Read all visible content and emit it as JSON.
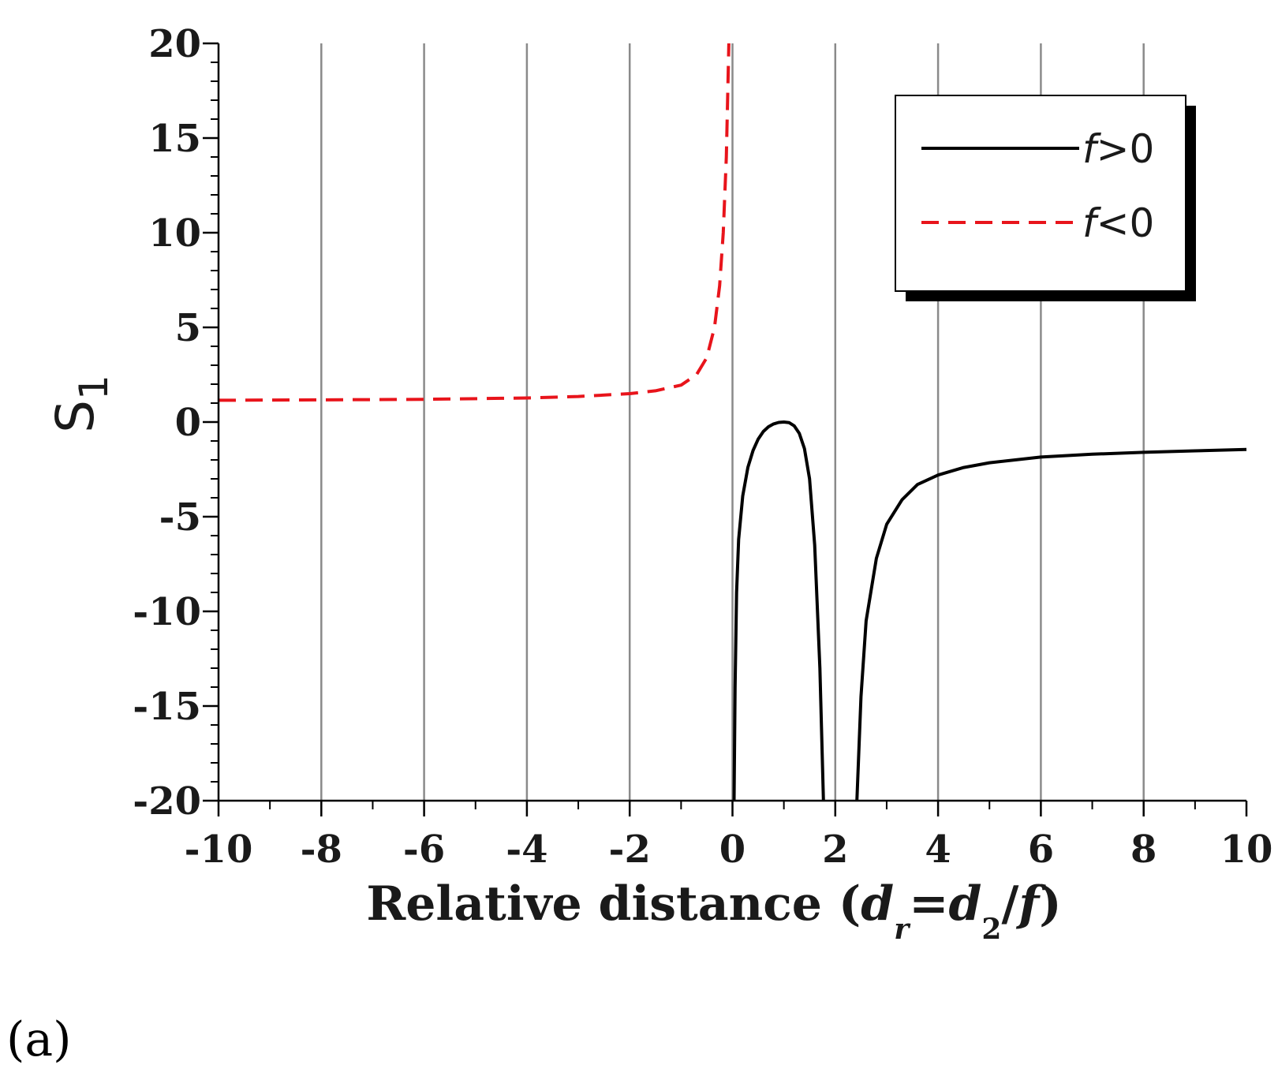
{
  "panel_label": "(a)",
  "chart_data": {
    "type": "line",
    "xlabel": "Relative distance (d_r = d_2 / f)",
    "xlabel_parts": {
      "prefix": "Relative distance (",
      "d1": "d",
      "sub1": "r",
      "eq": "=",
      "d2": "d",
      "sub2": "2",
      "slash": "/",
      "f": "f",
      "suffix": ")"
    },
    "ylabel": "S",
    "ylabel_sub": "1",
    "xlim": [
      -10,
      10
    ],
    "ylim": [
      -20,
      20
    ],
    "xticks": [
      -10,
      -8,
      -6,
      -4,
      -2,
      0,
      2,
      4,
      6,
      8,
      10
    ],
    "xtick_labels": [
      "-10",
      "-8",
      "-6",
      "-4",
      "-2",
      "0",
      "2",
      "4",
      "6",
      "8",
      "10"
    ],
    "yticks": [
      20,
      15,
      10,
      5,
      0,
      -5,
      -10,
      -15,
      -20
    ],
    "ytick_labels": [
      "20",
      "15",
      "10",
      "5",
      "0",
      "-5",
      "-10",
      "-15",
      "-20"
    ],
    "grid": "vertical",
    "legend_position": "top-right",
    "series": [
      {
        "name": "f>0",
        "legend_f": "f",
        "legend_rest": ">0",
        "color": "#000000",
        "style": "solid",
        "segments": [
          [
            [
              0.03,
              -20
            ],
            [
              0.05,
              -14
            ],
            [
              0.08,
              -9
            ],
            [
              0.12,
              -6.2
            ],
            [
              0.2,
              -3.9
            ],
            [
              0.3,
              -2.4
            ],
            [
              0.4,
              -1.5
            ],
            [
              0.5,
              -0.9
            ],
            [
              0.6,
              -0.5
            ],
            [
              0.7,
              -0.25
            ],
            [
              0.8,
              -0.1
            ],
            [
              0.9,
              -0.02
            ],
            [
              1.0,
              0
            ],
            [
              1.1,
              -0.03
            ],
            [
              1.2,
              -0.2
            ],
            [
              1.3,
              -0.6
            ],
            [
              1.4,
              -1.4
            ],
            [
              1.5,
              -3.0
            ],
            [
              1.6,
              -6.5
            ],
            [
              1.7,
              -13
            ],
            [
              1.77,
              -20
            ]
          ],
          [
            [
              2.42,
              -20
            ],
            [
              2.5,
              -14.5
            ],
            [
              2.6,
              -10.5
            ],
            [
              2.8,
              -7.2
            ],
            [
              3.0,
              -5.4
            ],
            [
              3.3,
              -4.1
            ],
            [
              3.6,
              -3.3
            ],
            [
              4.0,
              -2.8
            ],
            [
              4.5,
              -2.4
            ],
            [
              5.0,
              -2.15
            ],
            [
              6.0,
              -1.85
            ],
            [
              7.0,
              -1.7
            ],
            [
              8.0,
              -1.6
            ],
            [
              9.0,
              -1.52
            ],
            [
              10.0,
              -1.45
            ]
          ]
        ]
      },
      {
        "name": "f<0",
        "legend_f": "f",
        "legend_rest": "<0",
        "color": "#e8141b",
        "style": "dashed",
        "segments": [
          [
            [
              -10,
              1.15
            ],
            [
              -8,
              1.17
            ],
            [
              -6,
              1.2
            ],
            [
              -4,
              1.27
            ],
            [
              -3,
              1.35
            ],
            [
              -2,
              1.5
            ],
            [
              -1.5,
              1.65
            ],
            [
              -1.0,
              1.95
            ],
            [
              -0.7,
              2.5
            ],
            [
              -0.5,
              3.4
            ],
            [
              -0.35,
              5.0
            ],
            [
              -0.25,
              7.2
            ],
            [
              -0.18,
              10
            ],
            [
              -0.12,
              14
            ],
            [
              -0.07,
              20
            ]
          ]
        ]
      }
    ]
  }
}
